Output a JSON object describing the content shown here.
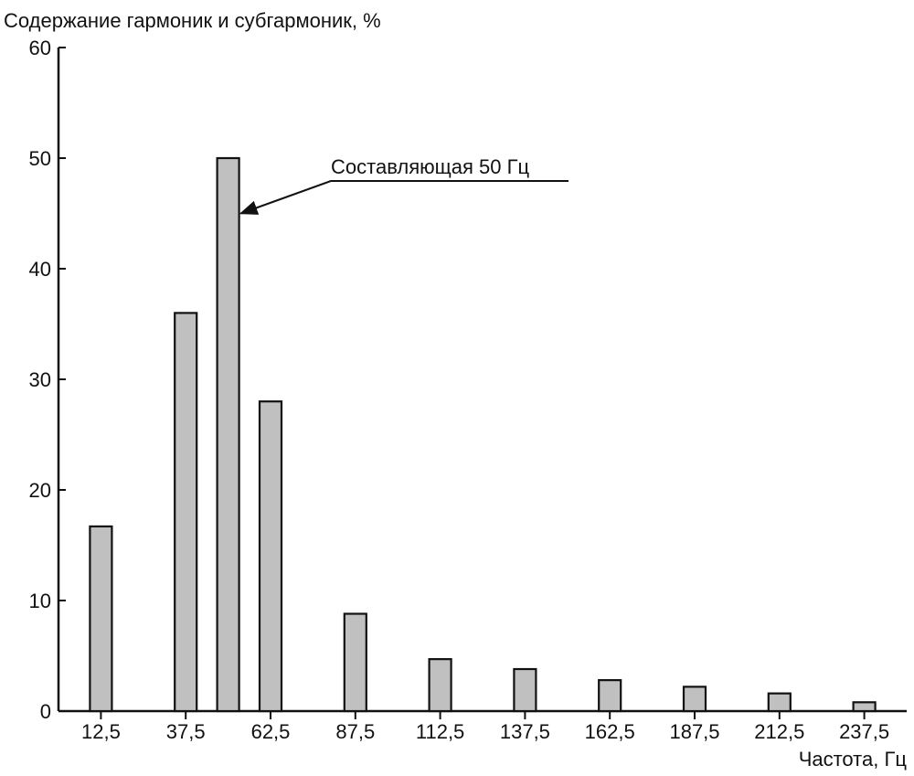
{
  "chart_data": {
    "type": "bar",
    "title": "",
    "ylabel": "Содержание гармоник и субгармоник, %",
    "xlabel": "Частота, Гц",
    "ylim": [
      0,
      60
    ],
    "yticks": [
      "0",
      "10",
      "20",
      "30",
      "40",
      "50",
      "60"
    ],
    "xticks": [
      "12,5",
      "37,5",
      "62,5",
      "87,5",
      "112,5",
      "137,5",
      "162,5",
      "187,5",
      "212,5",
      "237,5"
    ],
    "x": [
      12.5,
      37.5,
      50,
      62.5,
      87.5,
      112.5,
      137.5,
      162.5,
      187.5,
      212.5,
      237.5
    ],
    "values": [
      16.7,
      36,
      50,
      28,
      8.8,
      4.7,
      3.8,
      2.8,
      2.2,
      1.6,
      0.8
    ],
    "grid": false,
    "bar_color": "#c0c0c0",
    "annotations": [
      {
        "text": "Составляющая 50 Гц",
        "x": 50,
        "y": 50
      }
    ]
  }
}
